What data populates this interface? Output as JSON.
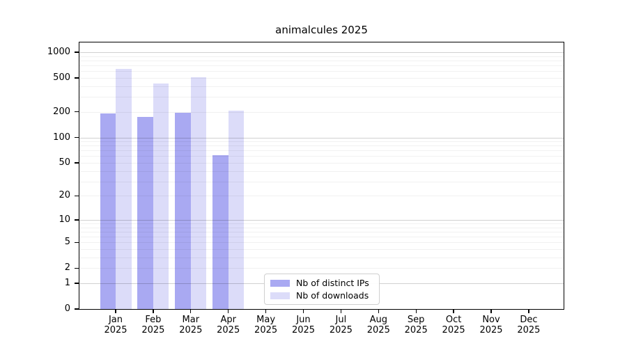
{
  "title": "animalcules 2025",
  "chart_data": {
    "type": "bar",
    "title": "animalcules 2025",
    "x_year": "2025",
    "categories": [
      "Jan",
      "Feb",
      "Mar",
      "Apr",
      "May",
      "Jun",
      "Jul",
      "Aug",
      "Sep",
      "Oct",
      "Nov",
      "Dec"
    ],
    "series": [
      {
        "name": "Nb of distinct IPs",
        "color": "#a9a9f2",
        "values": [
          193,
          173,
          197,
          62,
          0,
          0,
          0,
          0,
          0,
          0,
          0,
          0
        ]
      },
      {
        "name": "Nb of downloads",
        "color": "#dcdcf9",
        "values": [
          635,
          433,
          505,
          208,
          0,
          0,
          0,
          0,
          0,
          0,
          0,
          0
        ]
      }
    ],
    "y_scale": "log1p",
    "y_ticks": [
      1000,
      500,
      200,
      100,
      50,
      20,
      10,
      5,
      2,
      1,
      0
    ],
    "y_max": 1300,
    "ylim": [
      0,
      1300
    ],
    "grid": {
      "orientation": "horizontal",
      "major_values": [
        1,
        10,
        100,
        1000
      ],
      "minor_values": [
        2,
        3,
        4,
        5,
        6,
        7,
        8,
        9,
        20,
        30,
        40,
        50,
        60,
        70,
        80,
        90,
        200,
        300,
        400,
        500,
        600,
        700,
        800,
        900
      ]
    },
    "legend": {
      "position": "lower center",
      "entries": [
        "Nb of distinct IPs",
        "Nb of downloads"
      ]
    }
  }
}
